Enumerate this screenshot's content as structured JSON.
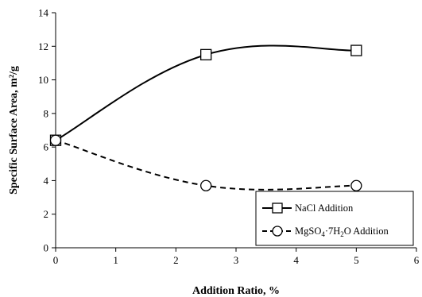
{
  "chart_data": {
    "type": "line",
    "title": "",
    "xlabel": "Addition Ratio, %",
    "ylabel": "Specific Surface Area, m²/g",
    "xlim": [
      0,
      6
    ],
    "ylim": [
      0,
      14
    ],
    "xticks": [
      0,
      1,
      2,
      3,
      4,
      5,
      6
    ],
    "yticks": [
      0,
      2,
      4,
      6,
      8,
      10,
      12,
      14
    ],
    "xtick_labels": [
      "0",
      "1",
      "2",
      "3",
      "4",
      "5",
      "6"
    ],
    "ytick_labels": [
      "0",
      "2",
      "4",
      "6",
      "8",
      "10",
      "12",
      "14"
    ],
    "grid": false,
    "legend_position": "bottom-right",
    "series": [
      {
        "name": "NaCl Addition",
        "marker": "square",
        "line_style": "solid",
        "color": "#000000",
        "points": [
          {
            "x": 0,
            "y": 6.4
          },
          {
            "x": 2.5,
            "y": 11.5
          },
          {
            "x": 5,
            "y": 11.75
          }
        ]
      },
      {
        "name": "MgSO4·7H2O Addition",
        "marker": "circle",
        "line_style": "dashed",
        "color": "#000000",
        "points": [
          {
            "x": 0,
            "y": 6.4
          },
          {
            "x": 2.5,
            "y": 3.7
          },
          {
            "x": 5,
            "y": 3.7
          }
        ]
      }
    ]
  }
}
